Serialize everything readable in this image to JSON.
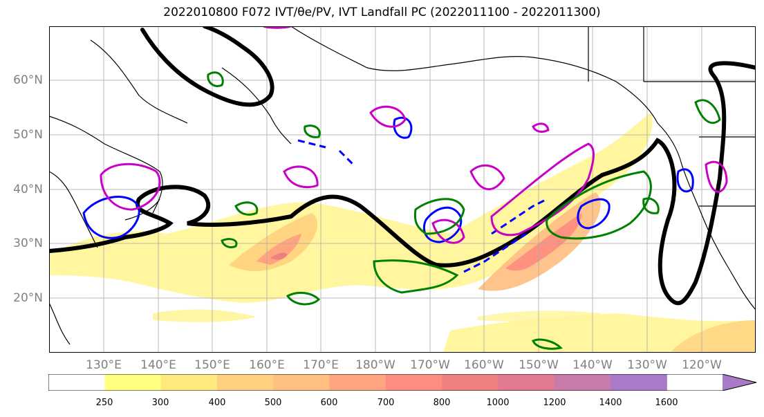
{
  "title": "2022010800 F072 IVT/θe/PV, IVT Landfall PC (2022011100 - 2022011300)",
  "map": {
    "lat_labels": [
      "60°N",
      "50°N",
      "40°N",
      "30°N",
      "20°N"
    ],
    "lon_labels": [
      "130°E",
      "140°E",
      "150°E",
      "160°E",
      "170°E",
      "180°W",
      "170°W",
      "160°W",
      "150°W",
      "140°W",
      "130°W",
      "120°W"
    ],
    "extent": {
      "lon_min": 120,
      "lon_max": 250,
      "lat_min": 10,
      "lat_max": 70
    }
  },
  "colorbar": {
    "ticks": [
      "250",
      "300",
      "400",
      "500",
      "600",
      "700",
      "800",
      "1000",
      "1200",
      "1400",
      "1600"
    ],
    "colors": [
      "#ffff80",
      "#ffea80",
      "#ffd080",
      "#ffbf80",
      "#ffa680",
      "#ff8c80",
      "#f08080",
      "#e07a90",
      "#c87aa8",
      "#a87ac8"
    ],
    "extend": "max"
  },
  "contour_colors": {
    "theta_e_dark": "#000000",
    "pv_positive": "#0000ff",
    "pv_negative": "#c800c8",
    "landfall": "#008000"
  }
}
